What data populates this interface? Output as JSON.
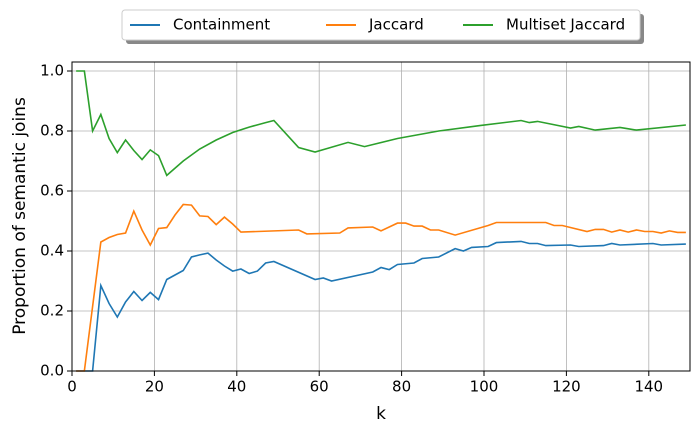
{
  "chart_data": {
    "type": "line",
    "xlabel": "k",
    "ylabel": "Proportion of semantic joins",
    "xlim": [
      0,
      150
    ],
    "xticks": [
      0,
      20,
      40,
      60,
      80,
      100,
      120,
      140
    ],
    "ylim": [
      0,
      1.03
    ],
    "yticks": [
      {
        "value": 0,
        "label": "0.0"
      },
      {
        "value": 0.2,
        "label": "0.2"
      },
      {
        "value": 0.4,
        "label": "0.4"
      },
      {
        "value": 0.6,
        "label": "0.6"
      },
      {
        "value": 0.8,
        "label": "0.8"
      },
      {
        "value": 1.0,
        "label": "1.0"
      }
    ],
    "grid": true,
    "legend": "upper center outside",
    "series": [
      {
        "name": "Containment",
        "color": "#1f77b4",
        "x": [
          1,
          3,
          5,
          7,
          9,
          11,
          13,
          15,
          17,
          19,
          21,
          23,
          25,
          27,
          29,
          31,
          33,
          35,
          37,
          39,
          41,
          43,
          45,
          47,
          49,
          59,
          61,
          63,
          73,
          75,
          77,
          79,
          83,
          85,
          89,
          93,
          95,
          97,
          101,
          103,
          109,
          111,
          113,
          115,
          121,
          123,
          129,
          131,
          133,
          141,
          143,
          149
        ],
        "values": [
          0,
          0,
          0,
          0.285,
          0.225,
          0.18,
          0.23,
          0.265,
          0.235,
          0.262,
          0.238,
          0.305,
          0.32,
          0.335,
          0.38,
          0.387,
          0.393,
          0.37,
          0.35,
          0.333,
          0.34,
          0.325,
          0.333,
          0.36,
          0.365,
          0.305,
          0.31,
          0.3,
          0.33,
          0.345,
          0.338,
          0.355,
          0.36,
          0.375,
          0.38,
          0.408,
          0.4,
          0.412,
          0.415,
          0.428,
          0.432,
          0.425,
          0.425,
          0.418,
          0.42,
          0.415,
          0.418,
          0.425,
          0.42,
          0.425,
          0.42,
          0.423
        ]
      },
      {
        "name": "Jaccard",
        "color": "#ff7f0e",
        "x": [
          1,
          3,
          7,
          9,
          11,
          13,
          15,
          17,
          19,
          21,
          23,
          25,
          27,
          29,
          31,
          33,
          35,
          37,
          39,
          41,
          55,
          57,
          65,
          67,
          73,
          75,
          79,
          81,
          83,
          85,
          87,
          89,
          93,
          101,
          103,
          115,
          117,
          119,
          125,
          127,
          129,
          131,
          133,
          135,
          137,
          139,
          141,
          143,
          145,
          147,
          149
        ],
        "values": [
          0,
          0,
          0.43,
          0.445,
          0.455,
          0.46,
          0.533,
          0.47,
          0.42,
          0.475,
          0.478,
          0.52,
          0.555,
          0.553,
          0.517,
          0.515,
          0.488,
          0.513,
          0.49,
          0.463,
          0.47,
          0.457,
          0.46,
          0.477,
          0.48,
          0.467,
          0.493,
          0.493,
          0.483,
          0.483,
          0.47,
          0.47,
          0.453,
          0.485,
          0.495,
          0.495,
          0.485,
          0.485,
          0.465,
          0.472,
          0.472,
          0.463,
          0.47,
          0.463,
          0.47,
          0.465,
          0.465,
          0.46,
          0.467,
          0.462,
          0.462
        ]
      },
      {
        "name": "Multiset Jaccard",
        "color": "#2ca02c",
        "x": [
          1,
          3,
          5,
          7,
          9,
          11,
          13,
          15,
          17,
          19,
          21,
          23,
          27,
          31,
          35,
          39,
          43,
          47,
          49,
          55,
          59,
          67,
          71,
          79,
          89,
          99,
          109,
          111,
          113,
          121,
          123,
          127,
          133,
          137,
          149
        ],
        "values": [
          1.0,
          1.0,
          0.8,
          0.855,
          0.775,
          0.728,
          0.77,
          0.735,
          0.705,
          0.737,
          0.718,
          0.652,
          0.7,
          0.74,
          0.77,
          0.795,
          0.813,
          0.828,
          0.835,
          0.745,
          0.73,
          0.762,
          0.748,
          0.775,
          0.8,
          0.818,
          0.835,
          0.828,
          0.832,
          0.81,
          0.815,
          0.803,
          0.812,
          0.803,
          0.82
        ]
      }
    ]
  }
}
